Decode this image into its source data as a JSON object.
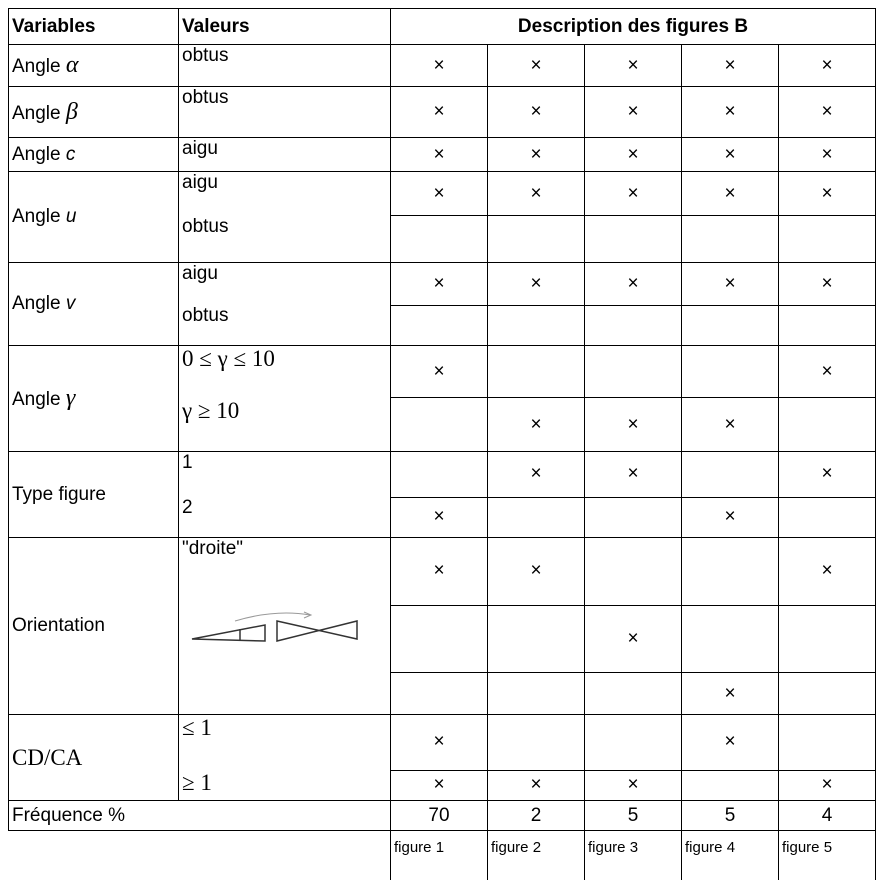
{
  "header": {
    "variables": "Variables",
    "valeurs": "Valeurs",
    "description": "Description des figures B"
  },
  "rows": [
    {
      "name": "Angle",
      "symbol": "α",
      "values": [
        {
          "label": "obtus",
          "marks": [
            "×",
            "×",
            "×",
            "×",
            "×"
          ]
        }
      ]
    },
    {
      "name": "Angle",
      "symbol": "β",
      "values": [
        {
          "label": "obtus",
          "marks": [
            "×",
            "×",
            "×",
            "×",
            "×"
          ]
        }
      ]
    },
    {
      "name": "Angle",
      "symbol": "c",
      "values": [
        {
          "label": "aigu",
          "marks": [
            "×",
            "×",
            "×",
            "×",
            "×"
          ]
        }
      ]
    },
    {
      "name": "Angle",
      "symbol": "u",
      "values": [
        {
          "label": "aigu",
          "marks": [
            "×",
            "×",
            "×",
            "×",
            "×"
          ]
        },
        {
          "label": "obtus",
          "marks": [
            null,
            null,
            null,
            null,
            null
          ]
        }
      ]
    },
    {
      "name": "Angle",
      "symbol": "v",
      "values": [
        {
          "label": "aigu",
          "marks": [
            "×",
            "×",
            "×",
            "×",
            "×"
          ]
        },
        {
          "label": "obtus",
          "marks": [
            null,
            null,
            null,
            null,
            null
          ]
        }
      ]
    },
    {
      "name": "Angle",
      "symbol": "γ",
      "values": [
        {
          "label": "0 ≤ γ ≤ 10",
          "marks": [
            "×",
            null,
            null,
            null,
            "×"
          ]
        },
        {
          "label": "γ ≥ 10",
          "marks": [
            null,
            "×",
            "×",
            "×",
            null
          ]
        }
      ]
    },
    {
      "name": "Type figure",
      "symbol": null,
      "values": [
        {
          "label": "1",
          "marks": [
            null,
            "×",
            "×",
            null,
            "×"
          ]
        },
        {
          "label": "2",
          "marks": [
            "×",
            null,
            null,
            "×",
            null
          ]
        }
      ]
    },
    {
      "name": "Orientation",
      "symbol": null,
      "values": [
        {
          "label": "\"droite\"",
          "marks": [
            "×",
            "×",
            null,
            null,
            "×"
          ]
        },
        {
          "label": null,
          "marks": [
            null,
            null,
            "×",
            null,
            null
          ]
        },
        {
          "label": null,
          "marks": [
            null,
            null,
            null,
            "×",
            null
          ]
        }
      ]
    },
    {
      "name": "CD/CA",
      "symbol": null,
      "values": [
        {
          "label": "≤ 1",
          "marks": [
            "×",
            null,
            null,
            "×",
            null
          ]
        },
        {
          "label": "≥ 1",
          "marks": [
            "×",
            "×",
            "×",
            null,
            "×"
          ]
        }
      ]
    }
  ],
  "frequency": {
    "label": "Fréquence %",
    "values": [
      70,
      2,
      5,
      5,
      4
    ]
  },
  "figures": [
    "figure 1",
    "figure 2",
    "figure 3",
    "figure 4",
    "figure 5"
  ]
}
